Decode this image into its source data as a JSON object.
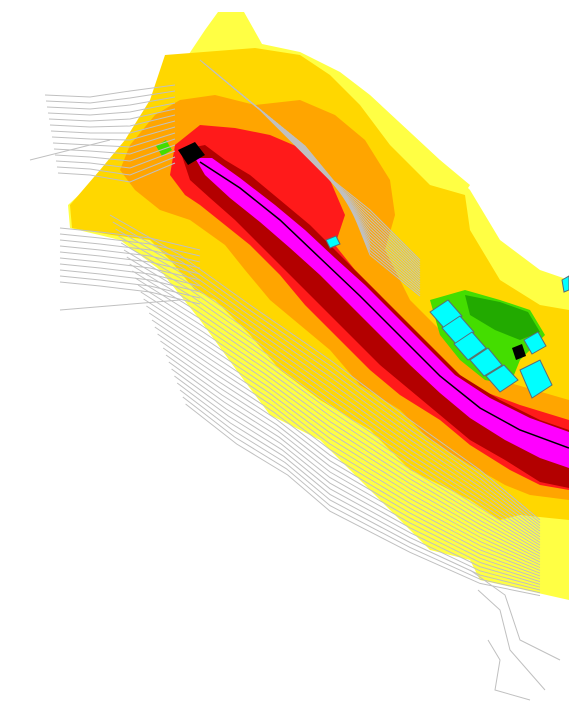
{
  "map": {
    "colors": {
      "background": "#ffffff",
      "zone_outer": "#ffff44",
      "zone_mid": "#ffd700",
      "zone_inner": "#ffa500",
      "zone_high": "#ff1a1a",
      "zone_core": "#b30000",
      "corridor": "#ff00ff",
      "corridor_edge": "#000000",
      "vegetation": "#44dd00",
      "vegetation_dark": "#22aa00",
      "buildings": "#00ffff",
      "building_outline": "#5a6a7a",
      "contours": "#c0c0c0",
      "marker": "#000000"
    },
    "layers": [
      "noise-zone-outer",
      "noise-zone-mid",
      "noise-zone-inner",
      "noise-zone-high",
      "noise-zone-core",
      "road-corridor",
      "vegetation-area",
      "buildings",
      "contour-lines"
    ]
  }
}
